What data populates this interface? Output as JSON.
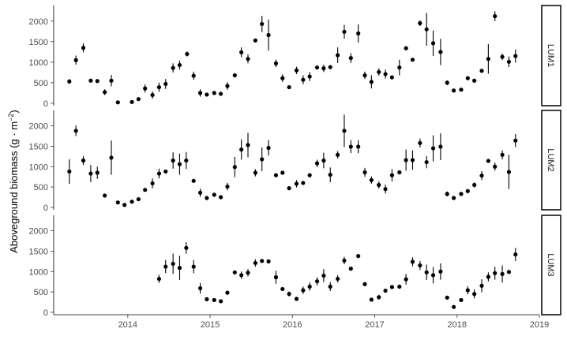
{
  "chart_data": {
    "type": "scatter",
    "ylabel": "Aboveground biomass (g · m⁻²)",
    "y_title_main": "Aboveground biomass (g · m",
    "y_title_sup": "−2",
    "y_title_end": ")",
    "xlabel": "",
    "xlim": [
      2013.1,
      2019.0
    ],
    "ylim": [
      -60,
      2380
    ],
    "x_ticks": [
      2014,
      2015,
      2016,
      2017,
      2018,
      2019
    ],
    "x_tick_labels": [
      "2014",
      "2015",
      "2016",
      "2017",
      "2018",
      "2019"
    ],
    "y_ticks": [
      0,
      500,
      1000,
      1500,
      2000
    ],
    "y_tick_labels": [
      "0",
      "500",
      "1000",
      "1500",
      "2000"
    ],
    "grid": false,
    "facet_strip_position": "right",
    "error_bars": true,
    "panels": [
      {
        "strip_label": "LUM1",
        "points": [
          {
            "x": 2013.29,
            "y": 530,
            "err": 60
          },
          {
            "x": 2013.37,
            "y": 1050,
            "err": 110
          },
          {
            "x": 2013.46,
            "y": 1350,
            "err": 110
          },
          {
            "x": 2013.55,
            "y": 550,
            "err": 40
          },
          {
            "x": 2013.63,
            "y": 540,
            "err": 30
          },
          {
            "x": 2013.72,
            "y": 270,
            "err": 70
          },
          {
            "x": 2013.8,
            "y": 550,
            "err": 140
          },
          {
            "x": 2013.88,
            "y": 20,
            "err": 10
          },
          {
            "x": 2014.05,
            "y": 30,
            "err": 10
          },
          {
            "x": 2014.13,
            "y": 100,
            "err": 30
          },
          {
            "x": 2014.21,
            "y": 360,
            "err": 100
          },
          {
            "x": 2014.3,
            "y": 200,
            "err": 90
          },
          {
            "x": 2014.38,
            "y": 390,
            "err": 110
          },
          {
            "x": 2014.46,
            "y": 470,
            "err": 120
          },
          {
            "x": 2014.55,
            "y": 860,
            "err": 110
          },
          {
            "x": 2014.63,
            "y": 930,
            "err": 110
          },
          {
            "x": 2014.72,
            "y": 1200,
            "err": 60
          },
          {
            "x": 2014.8,
            "y": 670,
            "err": 100
          },
          {
            "x": 2014.88,
            "y": 250,
            "err": 90
          },
          {
            "x": 2014.96,
            "y": 210,
            "err": 40
          },
          {
            "x": 2015.05,
            "y": 250,
            "err": 30
          },
          {
            "x": 2015.13,
            "y": 230,
            "err": 40
          },
          {
            "x": 2015.21,
            "y": 420,
            "err": 90
          },
          {
            "x": 2015.3,
            "y": 680,
            "err": 30
          },
          {
            "x": 2015.38,
            "y": 1240,
            "err": 120
          },
          {
            "x": 2015.46,
            "y": 1080,
            "err": 110
          },
          {
            "x": 2015.55,
            "y": 1530,
            "err": 30
          },
          {
            "x": 2015.63,
            "y": 1930,
            "err": 200
          },
          {
            "x": 2015.71,
            "y": 1660,
            "err": 380
          },
          {
            "x": 2015.8,
            "y": 970,
            "err": 90
          },
          {
            "x": 2015.88,
            "y": 610,
            "err": 90
          },
          {
            "x": 2015.96,
            "y": 390,
            "err": 40
          },
          {
            "x": 2016.05,
            "y": 800,
            "err": 90
          },
          {
            "x": 2016.13,
            "y": 570,
            "err": 110
          },
          {
            "x": 2016.21,
            "y": 650,
            "err": 110
          },
          {
            "x": 2016.3,
            "y": 870,
            "err": 40
          },
          {
            "x": 2016.38,
            "y": 850,
            "err": 90
          },
          {
            "x": 2016.46,
            "y": 880,
            "err": 50
          },
          {
            "x": 2016.55,
            "y": 1170,
            "err": 190
          },
          {
            "x": 2016.63,
            "y": 1740,
            "err": 170
          },
          {
            "x": 2016.71,
            "y": 1100,
            "err": 120
          },
          {
            "x": 2016.8,
            "y": 1700,
            "err": 220
          },
          {
            "x": 2016.88,
            "y": 680,
            "err": 90
          },
          {
            "x": 2016.96,
            "y": 520,
            "err": 160
          },
          {
            "x": 2017.05,
            "y": 760,
            "err": 90
          },
          {
            "x": 2017.13,
            "y": 710,
            "err": 110
          },
          {
            "x": 2017.21,
            "y": 630,
            "err": 50
          },
          {
            "x": 2017.3,
            "y": 870,
            "err": 190
          },
          {
            "x": 2017.38,
            "y": 1340,
            "err": 40
          },
          {
            "x": 2017.46,
            "y": 1060,
            "err": 40
          },
          {
            "x": 2017.55,
            "y": 1950,
            "err": 70
          },
          {
            "x": 2017.63,
            "y": 1800,
            "err": 400
          },
          {
            "x": 2017.71,
            "y": 1460,
            "err": 310
          },
          {
            "x": 2017.8,
            "y": 1250,
            "err": 320
          },
          {
            "x": 2017.88,
            "y": 500,
            "err": 60
          },
          {
            "x": 2017.96,
            "y": 310,
            "err": 30
          },
          {
            "x": 2018.05,
            "y": 330,
            "err": 40
          },
          {
            "x": 2018.13,
            "y": 610,
            "err": 30
          },
          {
            "x": 2018.21,
            "y": 550,
            "err": 30
          },
          {
            "x": 2018.3,
            "y": 790,
            "err": 30
          },
          {
            "x": 2018.38,
            "y": 1080,
            "err": 360
          },
          {
            "x": 2018.46,
            "y": 2120,
            "err": 120
          },
          {
            "x": 2018.55,
            "y": 1130,
            "err": 80
          },
          {
            "x": 2018.63,
            "y": 1010,
            "err": 130
          },
          {
            "x": 2018.71,
            "y": 1150,
            "err": 160
          }
        ]
      },
      {
        "strip_label": "LUM2",
        "points": [
          {
            "x": 2013.29,
            "y": 880,
            "err": 300
          },
          {
            "x": 2013.37,
            "y": 1880,
            "err": 130
          },
          {
            "x": 2013.46,
            "y": 1150,
            "err": 110
          },
          {
            "x": 2013.55,
            "y": 830,
            "err": 210
          },
          {
            "x": 2013.63,
            "y": 850,
            "err": 150
          },
          {
            "x": 2013.72,
            "y": 290,
            "err": 20
          },
          {
            "x": 2013.8,
            "y": 1220,
            "err": 420
          },
          {
            "x": 2013.88,
            "y": 120,
            "err": 30
          },
          {
            "x": 2013.96,
            "y": 60,
            "err": 20
          },
          {
            "x": 2014.05,
            "y": 140,
            "err": 30
          },
          {
            "x": 2014.13,
            "y": 200,
            "err": 30
          },
          {
            "x": 2014.21,
            "y": 430,
            "err": 40
          },
          {
            "x": 2014.3,
            "y": 590,
            "err": 120
          },
          {
            "x": 2014.38,
            "y": 830,
            "err": 120
          },
          {
            "x": 2014.46,
            "y": 880,
            "err": 40
          },
          {
            "x": 2014.55,
            "y": 1150,
            "err": 200
          },
          {
            "x": 2014.63,
            "y": 1060,
            "err": 260
          },
          {
            "x": 2014.71,
            "y": 1150,
            "err": 210
          },
          {
            "x": 2014.8,
            "y": 650,
            "err": 40
          },
          {
            "x": 2014.88,
            "y": 360,
            "err": 100
          },
          {
            "x": 2014.96,
            "y": 230,
            "err": 50
          },
          {
            "x": 2015.05,
            "y": 310,
            "err": 50
          },
          {
            "x": 2015.13,
            "y": 250,
            "err": 50
          },
          {
            "x": 2015.21,
            "y": 510,
            "err": 90
          },
          {
            "x": 2015.3,
            "y": 990,
            "err": 250
          },
          {
            "x": 2015.38,
            "y": 1420,
            "err": 250
          },
          {
            "x": 2015.46,
            "y": 1530,
            "err": 300
          },
          {
            "x": 2015.55,
            "y": 850,
            "err": 90
          },
          {
            "x": 2015.63,
            "y": 1180,
            "err": 290
          },
          {
            "x": 2015.71,
            "y": 1460,
            "err": 190
          },
          {
            "x": 2015.8,
            "y": 790,
            "err": 30
          },
          {
            "x": 2015.88,
            "y": 850,
            "err": 40
          },
          {
            "x": 2015.96,
            "y": 470,
            "err": 40
          },
          {
            "x": 2016.05,
            "y": 580,
            "err": 90
          },
          {
            "x": 2016.13,
            "y": 600,
            "err": 40
          },
          {
            "x": 2016.21,
            "y": 790,
            "err": 40
          },
          {
            "x": 2016.3,
            "y": 1080,
            "err": 90
          },
          {
            "x": 2016.38,
            "y": 1150,
            "err": 190
          },
          {
            "x": 2016.46,
            "y": 800,
            "err": 180
          },
          {
            "x": 2016.55,
            "y": 1290,
            "err": 90
          },
          {
            "x": 2016.63,
            "y": 1880,
            "err": 400
          },
          {
            "x": 2016.71,
            "y": 1490,
            "err": 160
          },
          {
            "x": 2016.8,
            "y": 1490,
            "err": 160
          },
          {
            "x": 2016.88,
            "y": 860,
            "err": 110
          },
          {
            "x": 2016.96,
            "y": 670,
            "err": 90
          },
          {
            "x": 2017.05,
            "y": 550,
            "err": 90
          },
          {
            "x": 2017.13,
            "y": 450,
            "err": 110
          },
          {
            "x": 2017.21,
            "y": 790,
            "err": 150
          },
          {
            "x": 2017.3,
            "y": 860,
            "err": 30
          },
          {
            "x": 2017.38,
            "y": 1160,
            "err": 260
          },
          {
            "x": 2017.46,
            "y": 1160,
            "err": 240
          },
          {
            "x": 2017.55,
            "y": 1580,
            "err": 110
          },
          {
            "x": 2017.63,
            "y": 1110,
            "err": 150
          },
          {
            "x": 2017.71,
            "y": 1450,
            "err": 320
          },
          {
            "x": 2017.8,
            "y": 1490,
            "err": 330
          },
          {
            "x": 2017.88,
            "y": 330,
            "err": 60
          },
          {
            "x": 2017.96,
            "y": 230,
            "err": 40
          },
          {
            "x": 2018.05,
            "y": 330,
            "err": 40
          },
          {
            "x": 2018.13,
            "y": 400,
            "err": 30
          },
          {
            "x": 2018.21,
            "y": 550,
            "err": 60
          },
          {
            "x": 2018.3,
            "y": 780,
            "err": 110
          },
          {
            "x": 2018.38,
            "y": 1140,
            "err": 30
          },
          {
            "x": 2018.46,
            "y": 1000,
            "err": 100
          },
          {
            "x": 2018.55,
            "y": 1290,
            "err": 110
          },
          {
            "x": 2018.63,
            "y": 870,
            "err": 420
          },
          {
            "x": 2018.71,
            "y": 1640,
            "err": 160
          }
        ]
      },
      {
        "strip_label": "LUM3",
        "points": [
          {
            "x": 2014.38,
            "y": 820,
            "err": 100
          },
          {
            "x": 2014.46,
            "y": 1120,
            "err": 160
          },
          {
            "x": 2014.55,
            "y": 1190,
            "err": 250
          },
          {
            "x": 2014.63,
            "y": 1090,
            "err": 300
          },
          {
            "x": 2014.71,
            "y": 1580,
            "err": 140
          },
          {
            "x": 2014.8,
            "y": 1120,
            "err": 160
          },
          {
            "x": 2014.88,
            "y": 590,
            "err": 130
          },
          {
            "x": 2014.96,
            "y": 320,
            "err": 40
          },
          {
            "x": 2015.05,
            "y": 300,
            "err": 40
          },
          {
            "x": 2015.13,
            "y": 270,
            "err": 40
          },
          {
            "x": 2015.21,
            "y": 480,
            "err": 30
          },
          {
            "x": 2015.3,
            "y": 980,
            "err": 30
          },
          {
            "x": 2015.38,
            "y": 910,
            "err": 90
          },
          {
            "x": 2015.46,
            "y": 970,
            "err": 90
          },
          {
            "x": 2015.55,
            "y": 1210,
            "err": 90
          },
          {
            "x": 2015.63,
            "y": 1260,
            "err": 40
          },
          {
            "x": 2015.71,
            "y": 1250,
            "err": 40
          },
          {
            "x": 2015.8,
            "y": 860,
            "err": 160
          },
          {
            "x": 2015.88,
            "y": 570,
            "err": 40
          },
          {
            "x": 2015.96,
            "y": 450,
            "err": 60
          },
          {
            "x": 2016.05,
            "y": 330,
            "err": 40
          },
          {
            "x": 2016.13,
            "y": 540,
            "err": 90
          },
          {
            "x": 2016.21,
            "y": 630,
            "err": 100
          },
          {
            "x": 2016.3,
            "y": 760,
            "err": 100
          },
          {
            "x": 2016.38,
            "y": 900,
            "err": 160
          },
          {
            "x": 2016.46,
            "y": 630,
            "err": 110
          },
          {
            "x": 2016.55,
            "y": 820,
            "err": 90
          },
          {
            "x": 2016.63,
            "y": 1270,
            "err": 90
          },
          {
            "x": 2016.71,
            "y": 1070,
            "err": 40
          },
          {
            "x": 2016.8,
            "y": 1380,
            "err": 30
          },
          {
            "x": 2016.88,
            "y": 690,
            "err": 30
          },
          {
            "x": 2016.96,
            "y": 310,
            "err": 40
          },
          {
            "x": 2017.05,
            "y": 370,
            "err": 60
          },
          {
            "x": 2017.13,
            "y": 530,
            "err": 40
          },
          {
            "x": 2017.21,
            "y": 620,
            "err": 40
          },
          {
            "x": 2017.3,
            "y": 630,
            "err": 40
          },
          {
            "x": 2017.38,
            "y": 810,
            "err": 130
          },
          {
            "x": 2017.46,
            "y": 1240,
            "err": 110
          },
          {
            "x": 2017.55,
            "y": 1150,
            "err": 110
          },
          {
            "x": 2017.63,
            "y": 980,
            "err": 190
          },
          {
            "x": 2017.71,
            "y": 910,
            "err": 200
          },
          {
            "x": 2017.8,
            "y": 1000,
            "err": 200
          },
          {
            "x": 2017.88,
            "y": 360,
            "err": 40
          },
          {
            "x": 2017.96,
            "y": 130,
            "err": 40
          },
          {
            "x": 2018.05,
            "y": 300,
            "err": 40
          },
          {
            "x": 2018.13,
            "y": 540,
            "err": 100
          },
          {
            "x": 2018.21,
            "y": 450,
            "err": 110
          },
          {
            "x": 2018.3,
            "y": 650,
            "err": 160
          },
          {
            "x": 2018.38,
            "y": 870,
            "err": 110
          },
          {
            "x": 2018.46,
            "y": 960,
            "err": 160
          },
          {
            "x": 2018.55,
            "y": 940,
            "err": 210
          },
          {
            "x": 2018.63,
            "y": 990,
            "err": 40
          },
          {
            "x": 2018.71,
            "y": 1420,
            "err": 160
          }
        ]
      }
    ]
  }
}
